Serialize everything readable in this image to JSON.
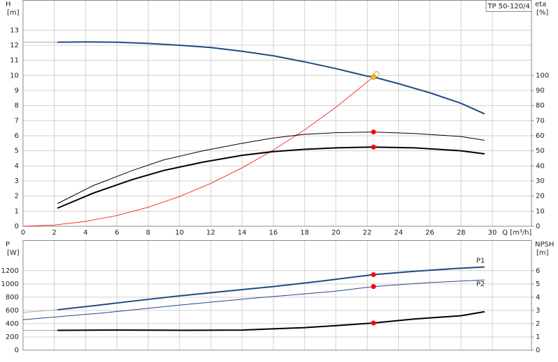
{
  "chart_data": [
    {
      "type": "line",
      "annotation": "TP 50-120/4",
      "ylabel": "H",
      "yunit": "[m]",
      "y2label": "eta",
      "y2unit": "[%]",
      "xlabel": "Q [m³/h]",
      "xlim": [
        0,
        32.5
      ],
      "xticks": [
        0,
        2,
        4,
        6,
        8,
        10,
        12,
        14,
        16,
        18,
        20,
        22,
        24,
        26,
        28,
        30
      ],
      "xtick_labels": true,
      "ylim": [
        0,
        15
      ],
      "yticks": [
        0,
        1,
        2,
        3,
        4,
        5,
        6,
        7,
        8,
        9,
        10,
        11,
        12,
        13
      ],
      "y2lim": [
        0,
        150
      ],
      "y2ticks": [
        0,
        10,
        20,
        30,
        40,
        50,
        60,
        70,
        80,
        90,
        100
      ],
      "grid": true,
      "series": [
        {
          "color": "#aaaaaa",
          "linewidth": 1,
          "x": [
            0,
            2.2
          ],
          "values": [
            12.2,
            12.2
          ]
        },
        {
          "color": "#1e4a85",
          "linewidth": 2,
          "x": [
            2.2,
            4,
            6,
            8,
            10,
            12,
            14,
            16,
            18,
            20,
            22,
            22.4,
            24,
            26,
            28,
            29.5
          ],
          "values": [
            12.2,
            12.22,
            12.2,
            12.12,
            12.0,
            11.85,
            11.6,
            11.3,
            10.9,
            10.45,
            9.95,
            9.9,
            9.45,
            8.85,
            8.15,
            7.45
          ]
        },
        {
          "color": "#ff0000",
          "linewidth": 0.8,
          "x": [
            0,
            2,
            4,
            6,
            8,
            10,
            12,
            14,
            16,
            18,
            20,
            22.4
          ],
          "values": [
            0,
            0.08,
            0.32,
            0.71,
            1.26,
            1.97,
            2.84,
            3.87,
            5.05,
            6.39,
            7.89,
            9.9
          ]
        },
        {
          "color": "#000000",
          "linewidth": 1,
          "axis": "y2",
          "x": [
            2.2,
            4.5,
            7,
            9,
            11.5,
            14,
            16,
            18,
            20,
            22.4,
            25,
            28,
            29.5
          ],
          "values": [
            15,
            27,
            37,
            44,
            50,
            55,
            58.5,
            61,
            62,
            62.5,
            61.5,
            59.5,
            57
          ]
        },
        {
          "color": "#000000",
          "linewidth": 2,
          "axis": "y2",
          "x": [
            2.2,
            4.5,
            7,
            9,
            11.5,
            14,
            16,
            18,
            20,
            22.4,
            25,
            28,
            29.5
          ],
          "values": [
            12,
            22,
            31,
            37,
            42.5,
            47,
            49.5,
            51,
            52,
            52.5,
            52,
            50,
            48
          ]
        }
      ],
      "markers": [
        {
          "x": 22.6,
          "y": 10.1,
          "color": "#ffffff"
        },
        {
          "x": 22.4,
          "y": 9.9,
          "color": "#f5c000"
        },
        {
          "x": 22.4,
          "y": 62.5,
          "axis": "y2",
          "color": "#ff0000"
        },
        {
          "x": 22.4,
          "y": 52.5,
          "axis": "y2",
          "color": "#ff0000"
        }
      ]
    },
    {
      "type": "line",
      "ylabel": "P",
      "yunit": "[W]",
      "y2label": "NPSH",
      "y2unit": "[m]",
      "xlim": [
        0,
        32.5
      ],
      "xticks": [
        0,
        2,
        4,
        6,
        8,
        10,
        12,
        14,
        16,
        18,
        20,
        22,
        24,
        26,
        28,
        30
      ],
      "xtick_labels": false,
      "ylim": [
        0,
        1660
      ],
      "yticks": [
        0,
        200,
        400,
        600,
        800,
        1000,
        1200
      ],
      "y2lim": [
        0,
        8.3
      ],
      "y2ticks": [
        0,
        1,
        2,
        3,
        4,
        5,
        6
      ],
      "grid": true,
      "series": [
        {
          "color": "#aaaaaa",
          "linewidth": 1,
          "x": [
            0,
            2.2
          ],
          "values": [
            570,
            610
          ]
        },
        {
          "name": "P1",
          "color": "#1e4a85",
          "linewidth": 2,
          "x": [
            2.2,
            4.5,
            7,
            10,
            13,
            16,
            19,
            22.4,
            25,
            27.5,
            29.5
          ],
          "values": [
            610,
            670,
            740,
            820,
            890,
            960,
            1040,
            1140,
            1190,
            1230,
            1255
          ]
        },
        {
          "name": "P2",
          "color": "#1e4a85",
          "linewidth": 1,
          "x": [
            0,
            5,
            10,
            15,
            20,
            22.4,
            26,
            29.5
          ],
          "values": [
            460,
            560,
            680,
            790,
            890,
            960,
            1020,
            1060
          ]
        },
        {
          "color": "#aaaaaa",
          "linewidth": 1,
          "axis": "y2",
          "x": [
            0,
            2.2
          ],
          "values": [
            1.5,
            1.5
          ]
        },
        {
          "color": "#000000",
          "linewidth": 2,
          "axis": "y2",
          "x": [
            2.2,
            6,
            10,
            14,
            18,
            20,
            22.4,
            25,
            28,
            29.5
          ],
          "values": [
            1.5,
            1.52,
            1.5,
            1.52,
            1.7,
            1.85,
            2.05,
            2.35,
            2.6,
            2.9
          ]
        }
      ],
      "markers": [
        {
          "x": 22.4,
          "y": 1140,
          "color": "#ff0000"
        },
        {
          "x": 22.4,
          "y": 960,
          "color": "#ff0000"
        },
        {
          "x": 22.4,
          "y": 2.05,
          "axis": "y2",
          "color": "#ff0000"
        }
      ]
    }
  ]
}
